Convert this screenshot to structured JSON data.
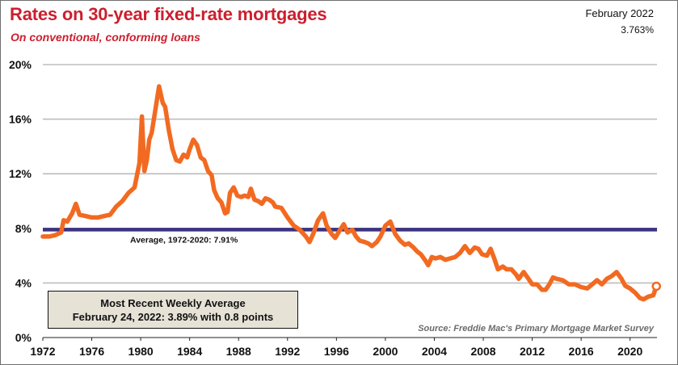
{
  "header": {
    "title": "Rates on 30-year fixed-rate mortgages",
    "subtitle": "On conventional, conforming loans",
    "latest_date": "February 2022",
    "latest_rate": "3.763%"
  },
  "callout": {
    "line1": "Most Recent Weekly Average",
    "line2": "February 24, 2022: 3.89% with 0.8 points"
  },
  "colors": {
    "series": "#f26a21",
    "average": "#3b3380",
    "grid": "#bdbdbd",
    "title": "#cc1f2e"
  },
  "chart_data": {
    "type": "line",
    "title": "Rates on 30-year fixed-rate mortgages",
    "subtitle": "On conventional, conforming loans",
    "xlabel": "",
    "ylabel": "",
    "xlim": [
      1972,
      2022.2
    ],
    "ylim": [
      0,
      20
    ],
    "x_ticks": [
      1972,
      1976,
      1980,
      1984,
      1988,
      1992,
      1996,
      2000,
      2004,
      2008,
      2012,
      2016,
      2020
    ],
    "x_tick_labels": [
      "1972",
      "1976",
      "1980",
      "1984",
      "1988",
      "1992",
      "1996",
      "2000",
      "2004",
      "2008",
      "2012",
      "2016",
      "2020"
    ],
    "y_ticks": [
      0,
      4,
      8,
      12,
      16,
      20
    ],
    "y_tick_labels": [
      "0%",
      "4%",
      "8%",
      "12%",
      "16%",
      "20%"
    ],
    "grid": true,
    "series": [
      {
        "name": "30-year fixed rate",
        "x": [
          1972.0,
          1972.5,
          1973.0,
          1973.5,
          1973.7,
          1974.0,
          1974.4,
          1974.7,
          1975.0,
          1975.5,
          1976.0,
          1976.5,
          1977.0,
          1977.5,
          1978.0,
          1978.5,
          1979.0,
          1979.5,
          1979.9,
          1980.1,
          1980.3,
          1980.5,
          1980.7,
          1980.9,
          1981.2,
          1981.5,
          1981.8,
          1982.0,
          1982.3,
          1982.6,
          1982.9,
          1983.2,
          1983.5,
          1983.8,
          1984.0,
          1984.3,
          1984.6,
          1984.9,
          1985.2,
          1985.5,
          1985.8,
          1986.0,
          1986.3,
          1986.6,
          1986.9,
          1987.1,
          1987.3,
          1987.6,
          1987.9,
          1988.2,
          1988.5,
          1988.8,
          1989.0,
          1989.3,
          1989.6,
          1989.9,
          1990.2,
          1990.5,
          1990.8,
          1991.0,
          1991.5,
          1992.0,
          1992.5,
          1993.0,
          1993.5,
          1993.8,
          1994.1,
          1994.5,
          1994.9,
          1995.2,
          1995.6,
          1995.9,
          1996.3,
          1996.6,
          1996.9,
          1997.3,
          1997.6,
          1997.9,
          1998.3,
          1998.6,
          1998.9,
          1999.3,
          1999.6,
          2000.0,
          2000.4,
          2000.8,
          2001.2,
          2001.6,
          2001.9,
          2002.3,
          2002.6,
          2002.9,
          2003.3,
          2003.5,
          2003.8,
          2004.1,
          2004.5,
          2004.9,
          2005.3,
          2005.7,
          2006.1,
          2006.5,
          2006.9,
          2007.3,
          2007.6,
          2007.9,
          2008.3,
          2008.6,
          2008.9,
          2009.2,
          2009.6,
          2009.9,
          2010.3,
          2010.7,
          2010.9,
          2011.3,
          2011.7,
          2012.0,
          2012.4,
          2012.8,
          2013.1,
          2013.4,
          2013.7,
          2014.0,
          2014.5,
          2015.0,
          2015.5,
          2016.0,
          2016.5,
          2016.9,
          2017.3,
          2017.7,
          2018.1,
          2018.5,
          2018.9,
          2019.3,
          2019.6,
          2020.0,
          2020.4,
          2020.8,
          2021.1,
          2021.5,
          2021.9,
          2022.15
        ],
        "values": [
          7.4,
          7.4,
          7.5,
          7.7,
          8.6,
          8.5,
          9.1,
          9.8,
          9.0,
          8.9,
          8.8,
          8.8,
          8.9,
          9.0,
          9.6,
          10.0,
          10.6,
          11.0,
          12.8,
          16.2,
          12.2,
          13.0,
          14.5,
          15.0,
          16.7,
          18.4,
          17.2,
          16.9,
          15.2,
          13.8,
          13.0,
          12.9,
          13.4,
          13.2,
          13.8,
          14.5,
          14.1,
          13.2,
          13.0,
          12.2,
          11.9,
          10.8,
          10.2,
          9.9,
          9.1,
          9.2,
          10.6,
          11.0,
          10.4,
          10.3,
          10.4,
          10.3,
          10.9,
          10.1,
          10.0,
          9.8,
          10.2,
          10.1,
          9.9,
          9.6,
          9.5,
          8.8,
          8.2,
          7.9,
          7.4,
          7.0,
          7.6,
          8.6,
          9.1,
          8.2,
          7.6,
          7.3,
          7.9,
          8.3,
          7.7,
          7.9,
          7.4,
          7.1,
          7.0,
          6.9,
          6.7,
          7.0,
          7.4,
          8.2,
          8.5,
          7.6,
          7.1,
          6.8,
          6.9,
          6.6,
          6.3,
          6.1,
          5.6,
          5.3,
          5.9,
          5.8,
          5.9,
          5.7,
          5.8,
          5.9,
          6.2,
          6.7,
          6.2,
          6.6,
          6.5,
          6.1,
          6.0,
          6.5,
          5.8,
          5.0,
          5.2,
          5.0,
          5.0,
          4.6,
          4.3,
          4.8,
          4.3,
          3.9,
          3.9,
          3.5,
          3.5,
          3.9,
          4.4,
          4.3,
          4.2,
          3.9,
          3.9,
          3.7,
          3.6,
          3.9,
          4.2,
          3.9,
          4.3,
          4.5,
          4.8,
          4.3,
          3.8,
          3.6,
          3.3,
          2.9,
          2.8,
          3.0,
          3.1,
          3.76
        ]
      }
    ],
    "average": {
      "value": 7.91,
      "label": "Average, 1972-2020: 7.91%"
    },
    "latest_point": {
      "x": 2022.15,
      "y": 3.76
    },
    "source": "Source: Freddie Mac's Primary Mortgage Market Survey"
  }
}
